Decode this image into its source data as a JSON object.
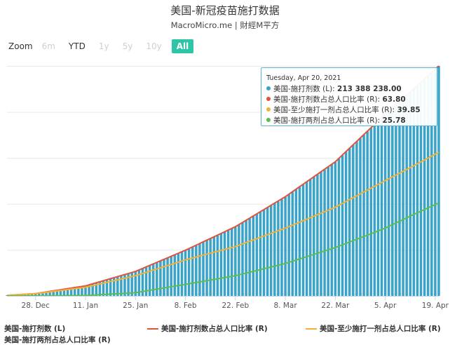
{
  "header": {
    "title": "美国-新冠疫苗施打数据",
    "subtitle": "MacroMicro.me | 財經M平方"
  },
  "zoom": {
    "label": "Zoom",
    "buttons": [
      {
        "label": "6m",
        "state": "disabled"
      },
      {
        "label": "YTD",
        "state": "normal"
      },
      {
        "label": "1y",
        "state": "disabled"
      },
      {
        "label": "5y",
        "state": "disabled"
      },
      {
        "label": "10y",
        "state": "disabled"
      },
      {
        "label": "All",
        "state": "active"
      }
    ]
  },
  "tooltip": {
    "date": "Tuesday, Apr 20, 2021",
    "rows": [
      {
        "label": "美国-施打剂数 (L): ",
        "value": "213 388 238.00",
        "color": "#3aa3c9"
      },
      {
        "label": "美国-施打剂数占总人口比率 (R): ",
        "value": "63.80",
        "color": "#e0533d"
      },
      {
        "label": "美国-至少施打一剂占总人口比率 (R): ",
        "value": "39.85",
        "color": "#f2b134"
      },
      {
        "label": "美国-施打两剂占总人口比率 (R): ",
        "value": "25.78",
        "color": "#5cbd52"
      }
    ]
  },
  "legend": [
    {
      "label": "美国-施打剂数 (L)",
      "color": "#3aa3c9",
      "kind": "bar"
    },
    {
      "label": "美国-施打剂数占总人口比率 (R)",
      "color": "#e0533d",
      "kind": "line"
    },
    {
      "label": "美国-至少施打一剂占总人口比率 (R)",
      "color": "#f2b134",
      "kind": "line"
    },
    {
      "label": "美国-施打两剂占总人口比率 (R)",
      "color": "#5cbd52",
      "kind": "line"
    }
  ],
  "chart_data": {
    "type": "bar",
    "x_start": "2020-12-20",
    "x_end": "2021-04-20",
    "x_ticks": [
      {
        "label": "28. Dec",
        "date": "2020-12-28"
      },
      {
        "label": "11. Jan",
        "date": "2021-01-11"
      },
      {
        "label": "25. Jan",
        "date": "2021-01-25"
      },
      {
        "label": "8. Feb",
        "date": "2021-02-08"
      },
      {
        "label": "22. Feb",
        "date": "2021-02-22"
      },
      {
        "label": "8. Mar",
        "date": "2021-03-08"
      },
      {
        "label": "22. Mar",
        "date": "2021-03-22"
      },
      {
        "label": "5. Apr",
        "date": "2021-04-05"
      },
      {
        "label": "19. Apr",
        "date": "2021-04-19"
      }
    ],
    "left_ylim": [
      0,
      213388238
    ],
    "right_ylim": [
      0,
      63.8
    ],
    "grid": true,
    "legend_position": "bottom",
    "series": [
      {
        "name": "美国-施打剂数 (L)",
        "type": "bar",
        "axis": "left",
        "color": "#3aa3c9",
        "points": [
          [
            "2020-12-20",
            556000
          ],
          [
            "2020-12-28",
            2130000
          ],
          [
            "2021-01-11",
            9330000
          ],
          [
            "2021-01-25",
            22700000
          ],
          [
            "2021-02-08",
            42400000
          ],
          [
            "2021-02-22",
            64200000
          ],
          [
            "2021-03-08",
            92100000
          ],
          [
            "2021-03-22",
            124500000
          ],
          [
            "2021-04-05",
            168600000
          ],
          [
            "2021-04-13",
            192300000
          ],
          [
            "2021-04-20",
            213388238
          ]
        ]
      },
      {
        "name": "美国-施打剂数占总人口比率 (R)",
        "type": "line",
        "axis": "right",
        "color": "#e0533d",
        "points": [
          [
            "2020-12-20",
            0.17
          ],
          [
            "2020-12-28",
            0.64
          ],
          [
            "2021-01-11",
            2.79
          ],
          [
            "2021-01-25",
            6.79
          ],
          [
            "2021-02-08",
            12.68
          ],
          [
            "2021-02-22",
            19.2
          ],
          [
            "2021-03-08",
            27.53
          ],
          [
            "2021-03-22",
            37.22
          ],
          [
            "2021-04-05",
            50.41
          ],
          [
            "2021-04-13",
            57.5
          ],
          [
            "2021-04-20",
            63.8
          ]
        ]
      },
      {
        "name": "美国-至少施打一剂占总人口比率 (R)",
        "type": "line",
        "axis": "right",
        "color": "#f2b134",
        "points": [
          [
            "2020-12-20",
            0.17
          ],
          [
            "2020-12-28",
            0.62
          ],
          [
            "2021-01-11",
            2.4
          ],
          [
            "2021-01-25",
            5.6
          ],
          [
            "2021-02-08",
            10.0
          ],
          [
            "2021-02-22",
            13.7
          ],
          [
            "2021-03-08",
            18.8
          ],
          [
            "2021-03-22",
            24.6
          ],
          [
            "2021-04-05",
            32.0
          ],
          [
            "2021-04-13",
            36.1
          ],
          [
            "2021-04-20",
            39.85
          ]
        ]
      },
      {
        "name": "美国-施打两剂占总人口比率 (R)",
        "type": "line",
        "axis": "right",
        "color": "#5cbd52",
        "points": [
          [
            "2020-12-20",
            0.0
          ],
          [
            "2020-12-28",
            0.0
          ],
          [
            "2021-01-11",
            0.1
          ],
          [
            "2021-01-25",
            0.9
          ],
          [
            "2021-02-08",
            3.2
          ],
          [
            "2021-02-22",
            5.6
          ],
          [
            "2021-03-08",
            9.0
          ],
          [
            "2021-03-22",
            13.4
          ],
          [
            "2021-04-05",
            18.8
          ],
          [
            "2021-04-13",
            22.6
          ],
          [
            "2021-04-20",
            25.78
          ]
        ]
      }
    ]
  }
}
